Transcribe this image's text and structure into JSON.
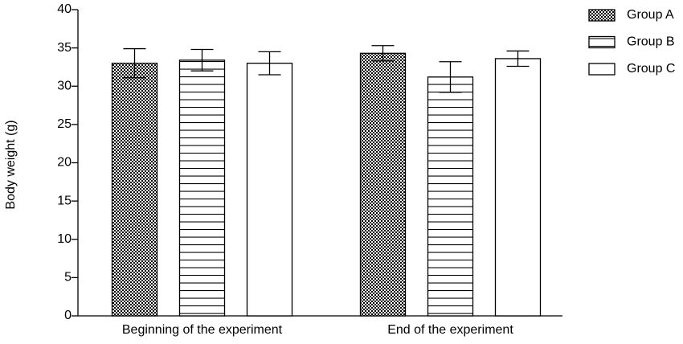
{
  "chart_data": {
    "type": "bar",
    "y_label": "Body weight (g)",
    "categories": [
      "Beginning of the experiment",
      "End of the experiment"
    ],
    "series": [
      {
        "name": "Group A",
        "color": "#000000",
        "pattern": "checker",
        "values": [
          33,
          34.3
        ],
        "errors": [
          1.9,
          1
        ]
      },
      {
        "name": "Group B",
        "color": "#000000",
        "pattern": "hlines",
        "values": [
          33.4,
          31.2
        ],
        "errors": [
          1.4,
          2
        ]
      },
      {
        "name": "Group C",
        "color": "#000000",
        "pattern": "none",
        "values": [
          33,
          33.6
        ],
        "errors": [
          1.5,
          1
        ]
      }
    ],
    "ylim": [
      0,
      40
    ],
    "yticks": [
      0,
      5,
      10,
      15,
      20,
      25,
      30,
      35,
      40
    ],
    "legend": "top-right"
  }
}
